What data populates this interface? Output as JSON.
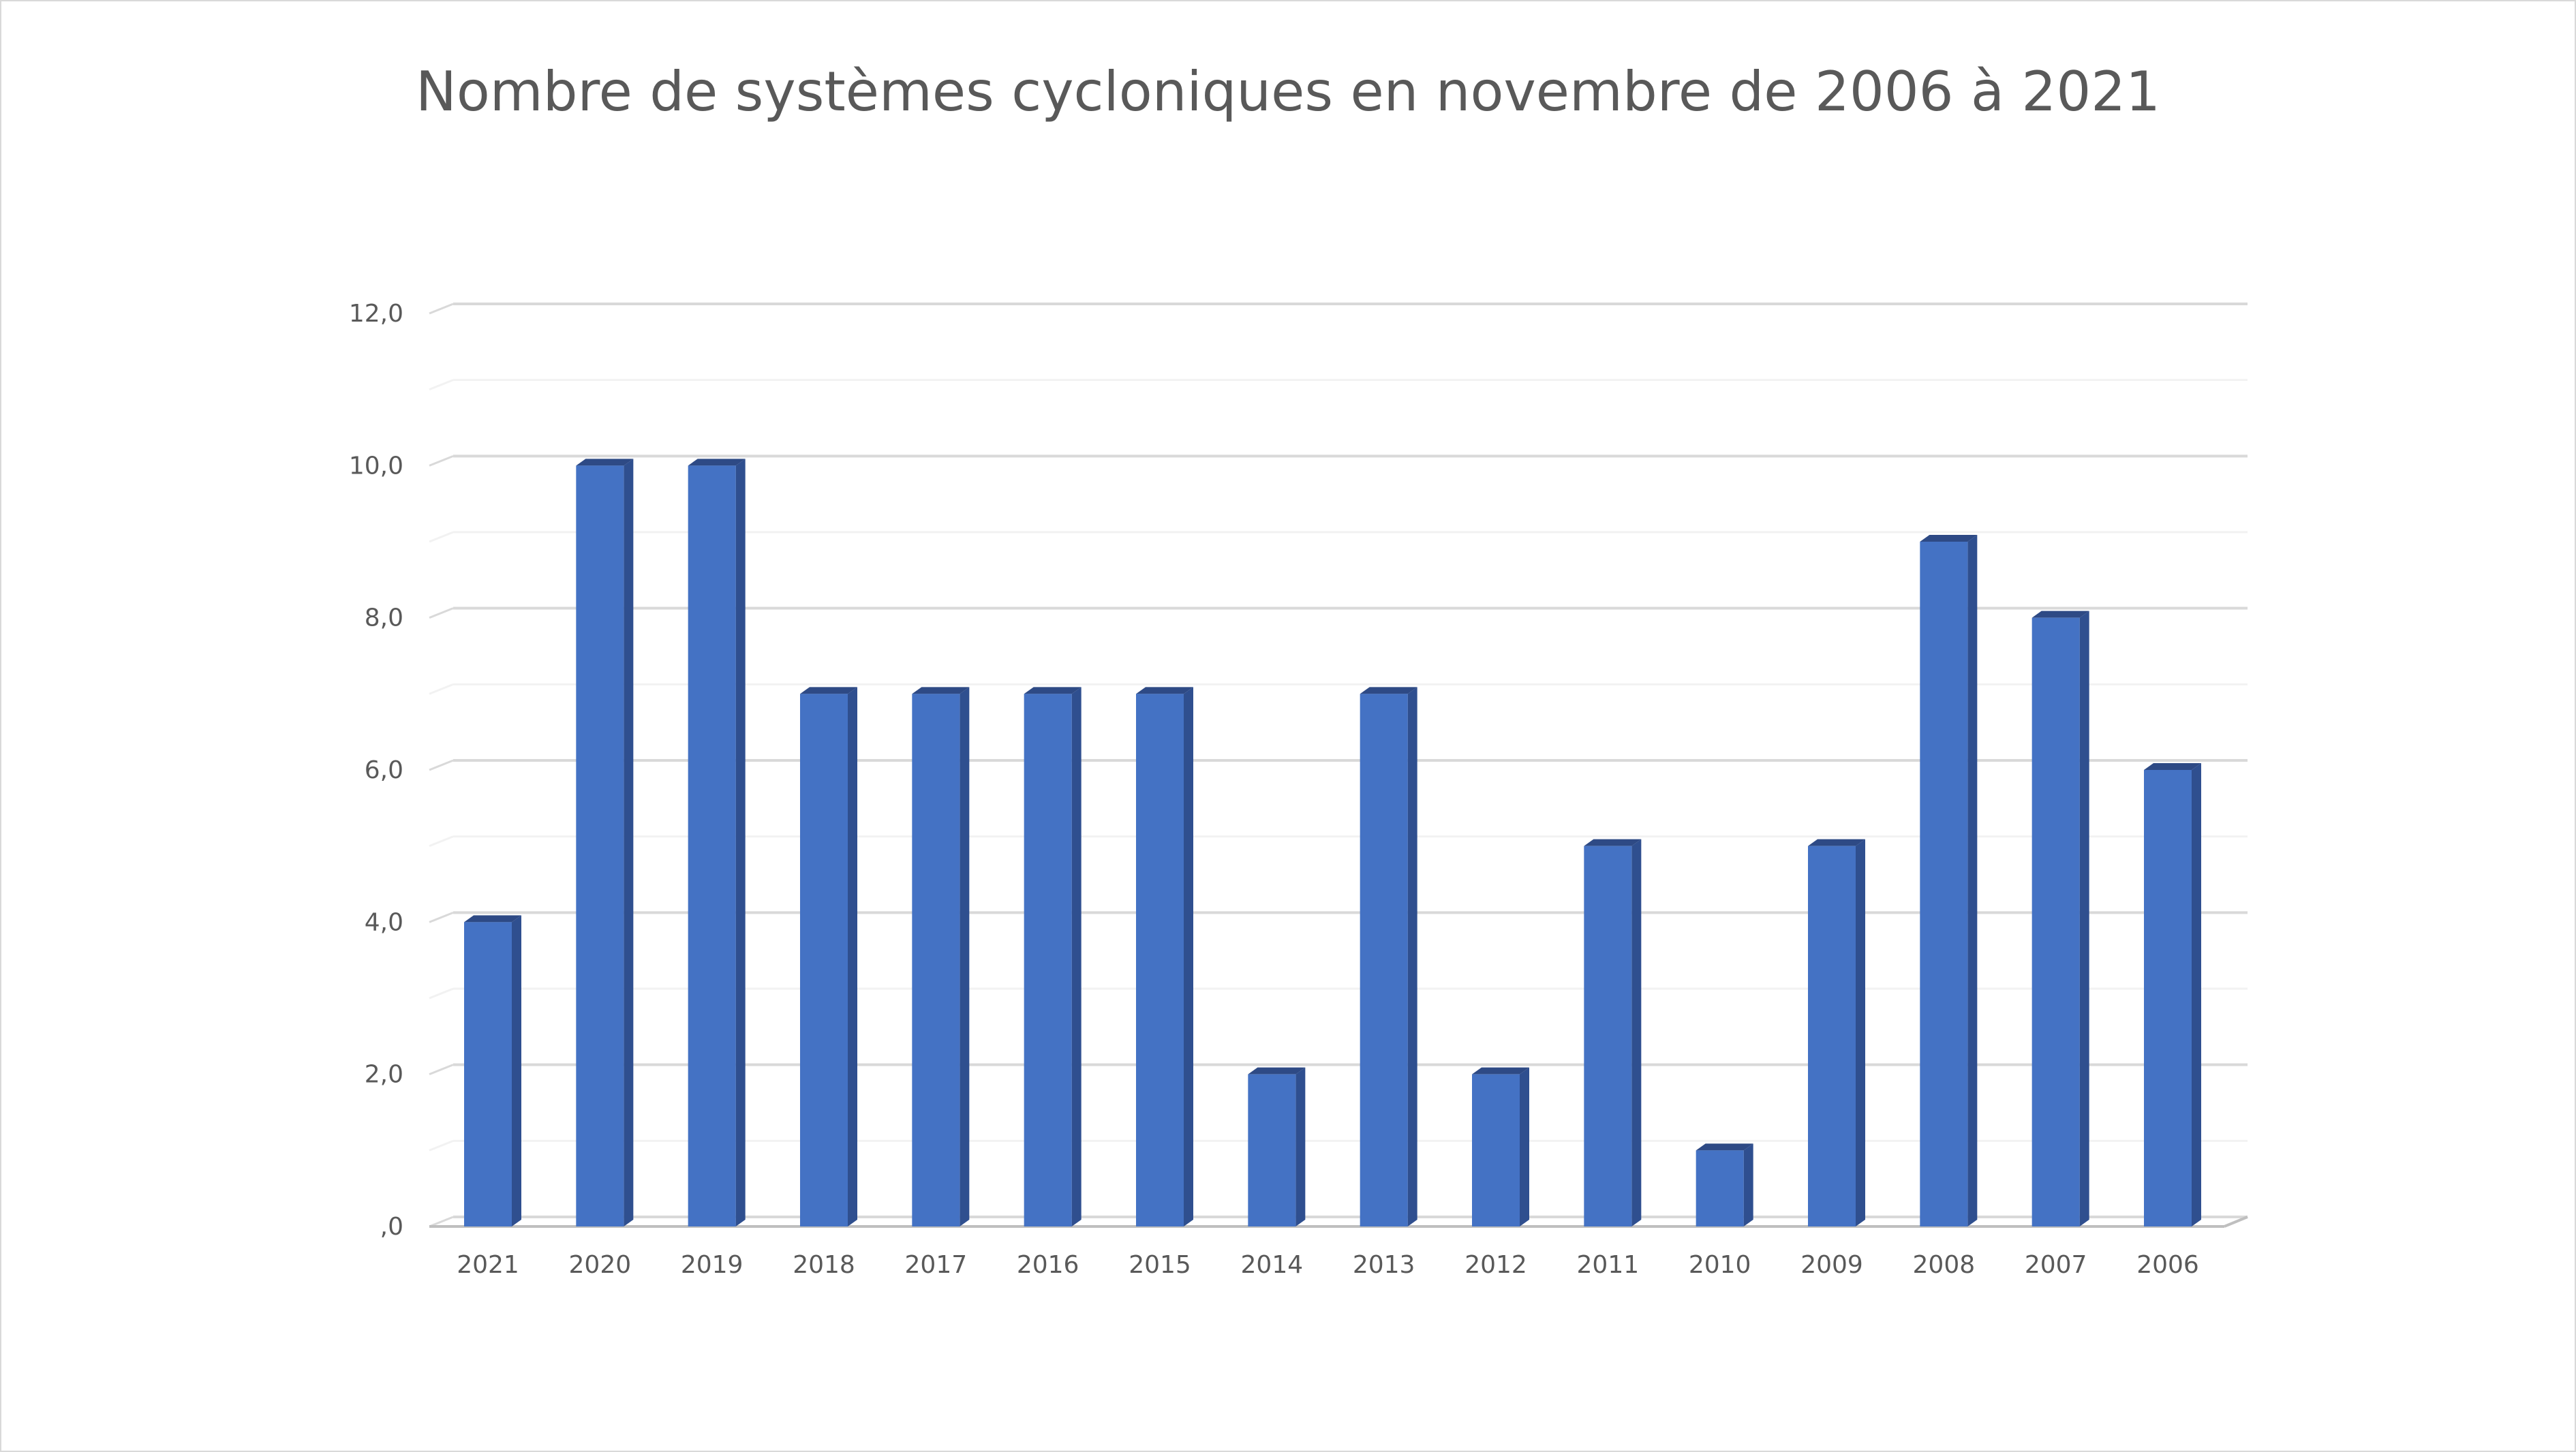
{
  "chart_data": {
    "type": "bar",
    "title": "Nombre de systèmes cycloniques en novembre de 2006 à 2021",
    "xlabel": "",
    "ylabel": "",
    "categories": [
      "2021",
      "2020",
      "2019",
      "2018",
      "2017",
      "2016",
      "2015",
      "2014",
      "2013",
      "2012",
      "2011",
      "2010",
      "2009",
      "2008",
      "2007",
      "2006"
    ],
    "values": [
      4,
      10,
      10,
      7,
      7,
      7,
      7,
      2,
      7,
      2,
      5,
      1,
      5,
      9,
      8,
      6
    ],
    "ylim": [
      0,
      12
    ],
    "y_ticks": [
      0,
      2,
      4,
      6,
      8,
      10,
      12
    ],
    "y_tick_labels": [
      ",0",
      "2,0",
      "4,0",
      "6,0",
      "8,0",
      "10,0",
      "12,0"
    ],
    "grid": "major-and-minor",
    "legend": "none",
    "style": "3d-clustered-column",
    "colors": {
      "bar_front": "#4472c4",
      "bar_side": "#2f4f8f",
      "bar_top": "#2e4a85",
      "major_grid": "#d9d9d9",
      "minor_grid": "#f2f2f2",
      "text": "#595959"
    }
  }
}
